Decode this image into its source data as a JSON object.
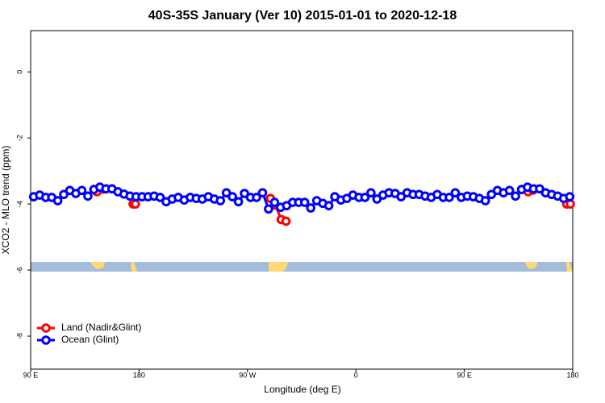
{
  "chart_data": {
    "type": "line",
    "title": "40S-35S January (Ver 10)   2015-01-01 to 2020-12-18",
    "x_label": "Longitude (deg E)",
    "y_label": "XCO2 - MLO trend (ppm)",
    "xlim": [
      90,
      540
    ],
    "ylim": [
      -9,
      1.25
    ],
    "xticks": [
      {
        "value": 90,
        "label": "90 E"
      },
      180,
      {
        "value": 270,
        "label": "90 W"
      },
      {
        "value": 360,
        "label": "0"
      },
      {
        "value": 450,
        "label": "90 E"
      },
      {
        "value": 540,
        "label": "180"
      }
    ],
    "yticks": [
      -8,
      -6,
      -4,
      -2,
      0
    ],
    "legend": "bottomleft",
    "series": [
      {
        "name": "Land (Nadir&Glint)",
        "color": "#ff0000",
        "x": [
          145,
          150,
          null,
          175,
          177,
          null,
          289,
          293,
          298,
          302,
          null,
          503,
          507,
          null,
          535,
          538
        ],
        "values": [
          -3.63,
          -3.55,
          null,
          -4.0,
          -4.0,
          null,
          -3.83,
          -4.03,
          -4.47,
          -4.52,
          null,
          -3.63,
          -3.58,
          null,
          -4.0,
          -4.0
        ]
      },
      {
        "name": "Ocean (Glint)",
        "color": "#0000ff",
        "x": [
          92.5,
          97.5,
          102.5,
          107.5,
          112.5,
          117.5,
          122.5,
          127.5,
          132.5,
          137.5,
          142.5,
          147.5,
          152.5,
          157.5,
          162.5,
          167.5,
          172.5,
          177.5,
          182.5,
          187.5,
          192.5,
          197.5,
          202.5,
          207.5,
          212.5,
          217.5,
          222.5,
          227.5,
          232.5,
          237.5,
          242.5,
          247.5,
          252.5,
          257.5,
          262.5,
          267.5,
          272.5,
          277.5,
          282.5,
          287.5,
          292.5,
          297.5,
          302.5,
          307.5,
          312.5,
          317.5,
          322.5,
          327.5,
          332.5,
          337.5,
          342.5,
          347.5,
          352.5,
          357.5,
          362.5,
          367.5,
          372.5,
          377.5,
          382.5,
          387.5,
          392.5,
          397.5,
          402.5,
          407.5,
          412.5,
          417.5,
          422.5,
          427.5,
          432.5,
          437.5,
          442.5,
          447.5,
          452.5,
          457.5,
          462.5,
          467.5,
          472.5,
          477.5,
          482.5,
          487.5,
          492.5,
          497.5,
          502.5,
          507.5,
          512.5,
          517.5,
          522.5,
          527.5,
          532.5,
          537.5
        ],
        "values": [
          -3.78,
          -3.73,
          -3.8,
          -3.8,
          -3.9,
          -3.71,
          -3.59,
          -3.68,
          -3.59,
          -3.76,
          -3.56,
          -3.49,
          -3.54,
          -3.54,
          -3.63,
          -3.7,
          -3.76,
          -3.78,
          -3.78,
          -3.78,
          -3.76,
          -3.8,
          -3.93,
          -3.85,
          -3.8,
          -3.88,
          -3.8,
          -3.83,
          -3.85,
          -3.78,
          -3.85,
          -3.9,
          -3.66,
          -3.78,
          -3.93,
          -3.68,
          -3.8,
          -3.8,
          -3.66,
          -4.15,
          -3.95,
          -4.1,
          -4.05,
          -3.95,
          -3.95,
          -3.95,
          -4.12,
          -3.9,
          -3.98,
          -4.05,
          -3.78,
          -3.88,
          -3.83,
          -3.73,
          -3.8,
          -3.8,
          -3.66,
          -3.85,
          -3.73,
          -3.66,
          -3.68,
          -3.78,
          -3.66,
          -3.71,
          -3.71,
          -3.76,
          -3.8,
          -3.71,
          -3.8,
          -3.8,
          -3.66,
          -3.8,
          -3.76,
          -3.78,
          -3.83,
          -3.9,
          -3.71,
          -3.59,
          -3.66,
          -3.59,
          -3.76,
          -3.56,
          -3.49,
          -3.54,
          -3.54,
          -3.66,
          -3.71,
          -3.76,
          -3.83,
          -3.78
        ]
      }
    ]
  }
}
